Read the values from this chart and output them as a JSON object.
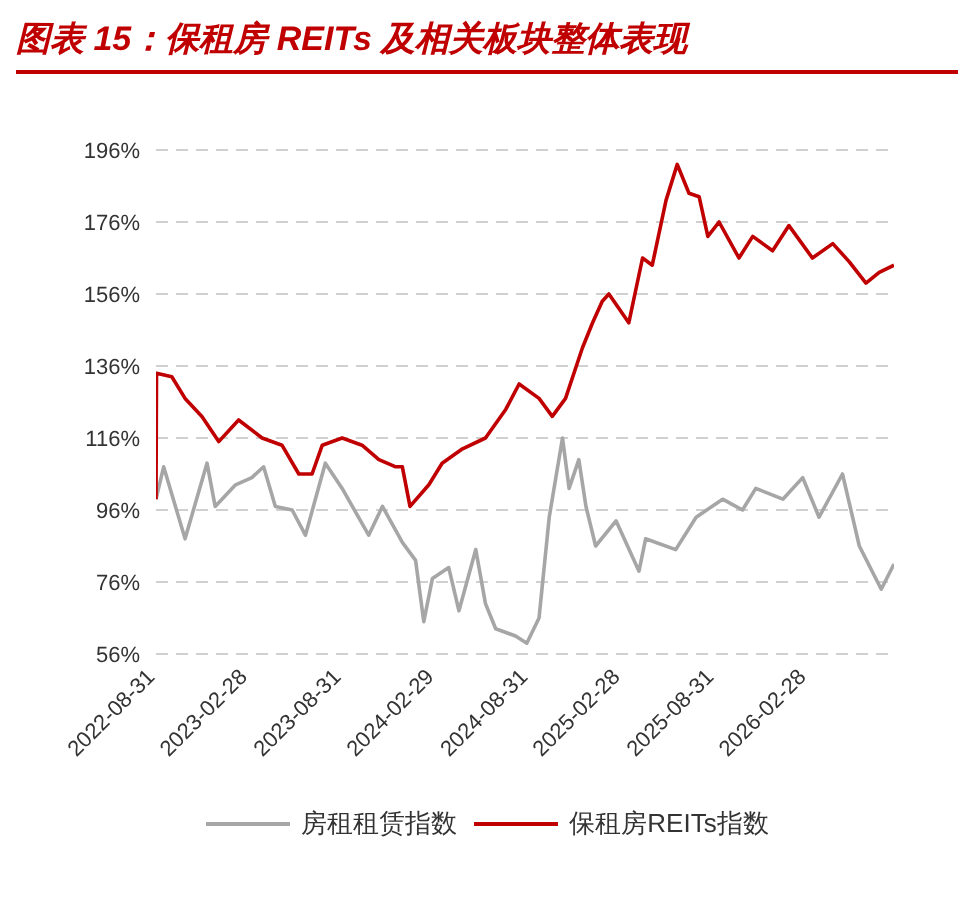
{
  "chart_data": {
    "type": "line",
    "title": "图表 15：保租房 REITs 及相关板块整体表现",
    "xlim": [
      "2022-08-31",
      "2026-08-17"
    ],
    "xticks": [
      "2022-08-31",
      "2023-02-28",
      "2023-08-31",
      "2024-02-29",
      "2024-08-31",
      "2025-02-28",
      "2025-08-31",
      "2026-02-28"
    ],
    "ylim": [
      56,
      196
    ],
    "yticks": [
      {
        "value": 56,
        "label": "56%"
      },
      {
        "value": 76,
        "label": "76%"
      },
      {
        "value": 96,
        "label": "96%"
      },
      {
        "value": 116,
        "label": "116%"
      },
      {
        "value": 136,
        "label": "136%"
      },
      {
        "value": 156,
        "label": "156%"
      },
      {
        "value": 176,
        "label": "176%"
      },
      {
        "value": 196,
        "label": "196%"
      }
    ],
    "grid": "y",
    "legend": "bottom",
    "marker": "none",
    "line_style": "solid",
    "series": [
      {
        "name": "房租租赁指数",
        "color": "#a6a6a6",
        "x": [
          "2022-08-31",
          "2022-09-15",
          "2022-10-27",
          "2022-12-09",
          "2022-12-25",
          "2023-02-03",
          "2023-03-07",
          "2023-03-30",
          "2023-04-22",
          "2023-05-25",
          "2023-06-20",
          "2023-07-29",
          "2023-08-31",
          "2023-09-20",
          "2023-10-22",
          "2023-11-18",
          "2023-12-27",
          "2024-01-22",
          "2024-02-07",
          "2024-02-24",
          "2024-03-27",
          "2024-04-16",
          "2024-05-19",
          "2024-06-07",
          "2024-06-27",
          "2024-08-05",
          "2024-08-27",
          "2024-09-20",
          "2024-10-10",
          "2024-11-05",
          "2024-11-18",
          "2024-12-07",
          "2024-12-21",
          "2025-01-09",
          "2025-02-18",
          "2025-04-04",
          "2025-04-17",
          "2025-06-15",
          "2025-07-25",
          "2025-09-15",
          "2025-10-24",
          "2025-11-19",
          "2026-01-11",
          "2026-02-19",
          "2026-03-23",
          "2026-05-08",
          "2026-06-10",
          "2026-07-23",
          "2026-08-17"
        ],
        "values": [
          99,
          108,
          88,
          109,
          97,
          103,
          105,
          108,
          97,
          96,
          89,
          109,
          102,
          97,
          89,
          97,
          87,
          82,
          65,
          77,
          80,
          68,
          85,
          70,
          63,
          61,
          59,
          66,
          94,
          116,
          102,
          110,
          97,
          86,
          93,
          79,
          88,
          85,
          94,
          99,
          96,
          102,
          99,
          105,
          94,
          106,
          86,
          74,
          81
        ]
      },
      {
        "name": "保租房REITs指数",
        "color": "#c00000",
        "x": [
          "2022-08-31",
          "2022-09-01",
          "2022-10-01",
          "2022-10-27",
          "2022-11-29",
          "2023-01-01",
          "2023-02-09",
          "2023-03-27",
          "2023-05-05",
          "2023-06-07",
          "2023-07-03",
          "2023-07-23",
          "2023-08-31",
          "2023-10-09",
          "2023-11-11",
          "2023-12-14",
          "2023-12-27",
          "2024-01-11",
          "2024-02-17",
          "2024-03-14",
          "2024-04-23",
          "2024-06-07",
          "2024-07-17",
          "2024-08-12",
          "2024-09-20",
          "2024-10-16",
          "2024-11-11",
          "2024-12-14",
          "2025-01-03",
          "2025-01-22",
          "2025-02-04",
          "2025-03-15",
          "2025-04-11",
          "2025-04-30",
          "2025-05-27",
          "2025-06-18",
          "2025-07-11",
          "2025-07-31",
          "2025-08-17",
          "2025-09-08",
          "2025-10-17",
          "2025-11-13",
          "2025-12-22",
          "2026-01-23",
          "2026-03-10",
          "2026-04-19",
          "2026-05-21",
          "2026-06-23",
          "2026-07-19",
          "2026-08-17"
        ],
        "values": [
          99,
          134,
          133,
          127,
          122,
          115,
          121,
          116,
          114,
          106,
          106,
          114,
          116,
          114,
          110,
          108,
          108,
          97,
          103,
          109,
          113,
          116,
          124,
          131,
          127,
          122,
          127,
          141,
          148,
          154,
          156,
          148,
          166,
          164,
          182,
          192,
          184,
          183,
          172,
          176,
          166,
          172,
          168,
          175,
          166,
          170,
          165,
          159,
          162,
          164
        ]
      }
    ]
  }
}
